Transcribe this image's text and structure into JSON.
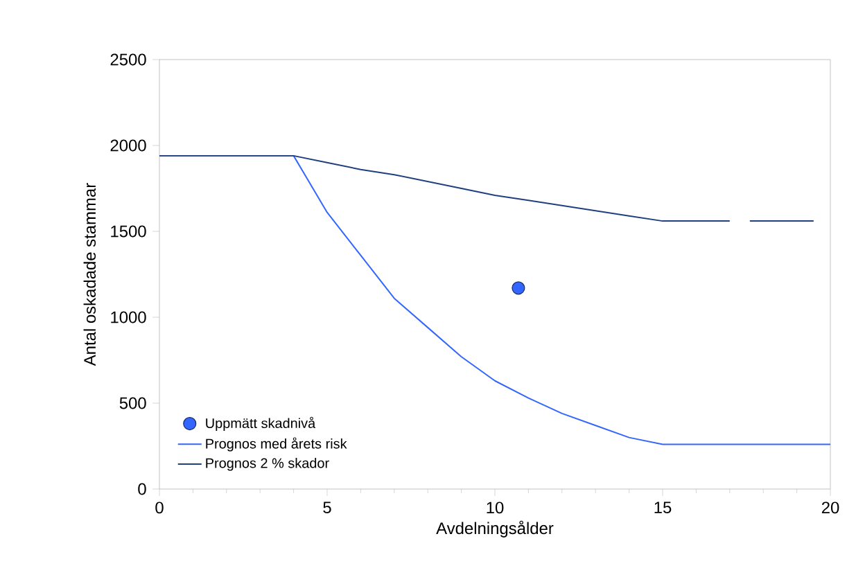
{
  "chart_data": {
    "type": "line",
    "xlabel": "Avdelningsålder",
    "ylabel": "Antal oskadade stammar",
    "xlim": [
      0,
      20
    ],
    "ylim": [
      0,
      2500
    ],
    "xticks": [
      0,
      5,
      10,
      15,
      20
    ],
    "yticks": [
      0,
      500,
      1000,
      1500,
      2000,
      2500
    ],
    "grid": false,
    "legend": "bottom left",
    "series": [
      {
        "name": "Uppmätt skadnivå",
        "type": "scatter",
        "marker": "circle",
        "color": "#3366ff",
        "x": [
          10.7
        ],
        "values": [
          1170
        ]
      },
      {
        "name": "Prognos med årets risk",
        "color": "#3366ff",
        "x": [
          0,
          4,
          5,
          6,
          7,
          8,
          9,
          10,
          11,
          12,
          13,
          14,
          15,
          20
        ],
        "values": [
          1940,
          1940,
          1610,
          1360,
          1110,
          940,
          770,
          630,
          530,
          440,
          370,
          300,
          260,
          260
        ]
      },
      {
        "name": "Prognos 2 % skador",
        "color": "#1f3f7f",
        "x": [
          0,
          4,
          5,
          6,
          7,
          8,
          9,
          10,
          11,
          12,
          13,
          14,
          15,
          17,
          17.3,
          17.6,
          19.5
        ],
        "values": [
          1940,
          1940,
          1900,
          1860,
          1830,
          1790,
          1750,
          1710,
          1680,
          1650,
          1620,
          1590,
          1560,
          1560,
          null,
          1560,
          1560
        ]
      }
    ]
  }
}
